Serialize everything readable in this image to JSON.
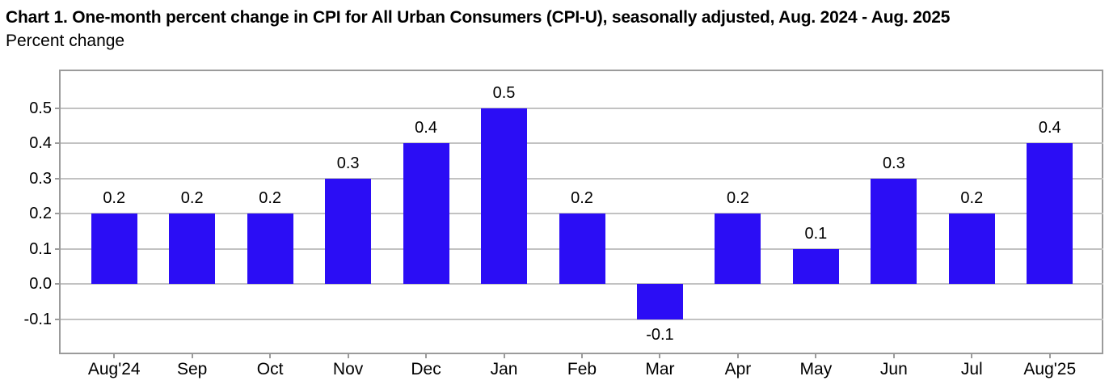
{
  "chart": {
    "title": "Chart 1. One-month percent change in CPI for All Urban Consumers (CPI-U), seasonally adjusted, Aug. 2024 - Aug. 2025",
    "subtitle": "Percent change"
  },
  "chart_data": {
    "type": "bar",
    "title": "Chart 1. One-month percent change in CPI for All Urban Consumers (CPI-U), seasonally adjusted, Aug. 2024 - Aug. 2025",
    "ylabel": "Percent change",
    "xlabel": "",
    "categories": [
      "Aug'24",
      "Sep",
      "Oct",
      "Nov",
      "Dec",
      "Jan",
      "Feb",
      "Mar",
      "Apr",
      "May",
      "Jun",
      "Jul",
      "Aug'25"
    ],
    "values": [
      0.2,
      0.2,
      0.2,
      0.3,
      0.4,
      0.5,
      0.2,
      -0.1,
      0.2,
      0.1,
      0.3,
      0.2,
      0.4
    ],
    "data_labels": [
      "0.2",
      "0.2",
      "0.2",
      "0.3",
      "0.4",
      "0.5",
      "0.2",
      "-0.1",
      "0.2",
      "0.1",
      "0.3",
      "0.2",
      "0.4"
    ],
    "y_ticks": [
      0.5,
      0.4,
      0.3,
      0.2,
      0.1,
      0,
      -0.1
    ],
    "y_tick_labels": [
      "0.5",
      "0.4",
      "0.3",
      "0.2",
      "0.1",
      "0.0",
      "-0.1"
    ],
    "ylim": [
      -0.2,
      0.605
    ],
    "grid": true,
    "legend": false,
    "bar_color": "#2b0df5",
    "grid_color": "#c2c2c2",
    "axis_border_color": "#9b9b9b",
    "text_color": "#000000"
  }
}
